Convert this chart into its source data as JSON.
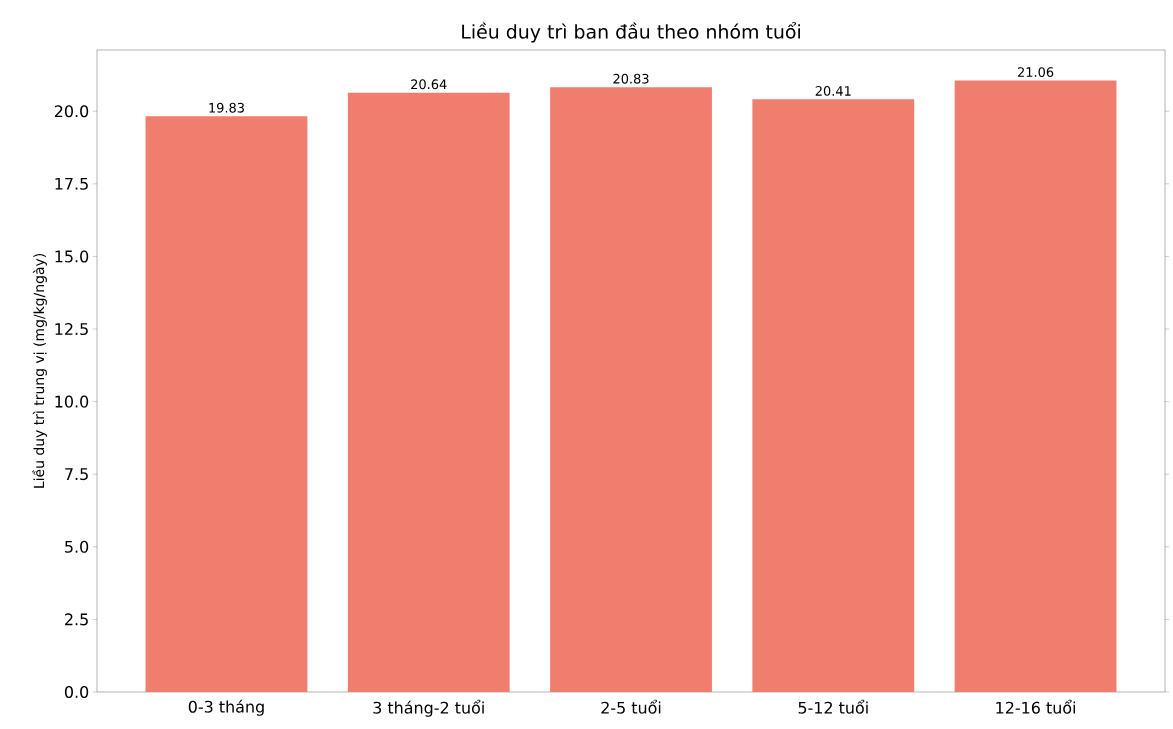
{
  "chart_data": {
    "type": "bar",
    "title": "Liều duy trì ban đầu theo nhóm tuổi",
    "ylabel": "Liều duy trì trung vị (mg/kg/ngày)",
    "categories": [
      "0-3 tháng",
      "3 tháng-2 tuổi",
      "2-5 tuổi",
      "5-12 tuổi",
      "12-16 tuổi"
    ],
    "values": [
      19.83,
      20.64,
      20.83,
      20.41,
      21.06
    ],
    "color": "#f07e6f",
    "data_labels": true,
    "grid": false,
    "ylim": [
      0,
      22.11
    ],
    "yticks": [
      {
        "value": 0,
        "label": "0.0"
      },
      {
        "value": 2.5,
        "label": "2.5"
      },
      {
        "value": 5,
        "label": "5.0"
      },
      {
        "value": 7.5,
        "label": "7.5"
      },
      {
        "value": 10,
        "label": "10.0"
      },
      {
        "value": 12.5,
        "label": "12.5"
      },
      {
        "value": 15,
        "label": "15.0"
      },
      {
        "value": 17.5,
        "label": "17.5"
      },
      {
        "value": 20,
        "label": "20.0"
      }
    ]
  }
}
